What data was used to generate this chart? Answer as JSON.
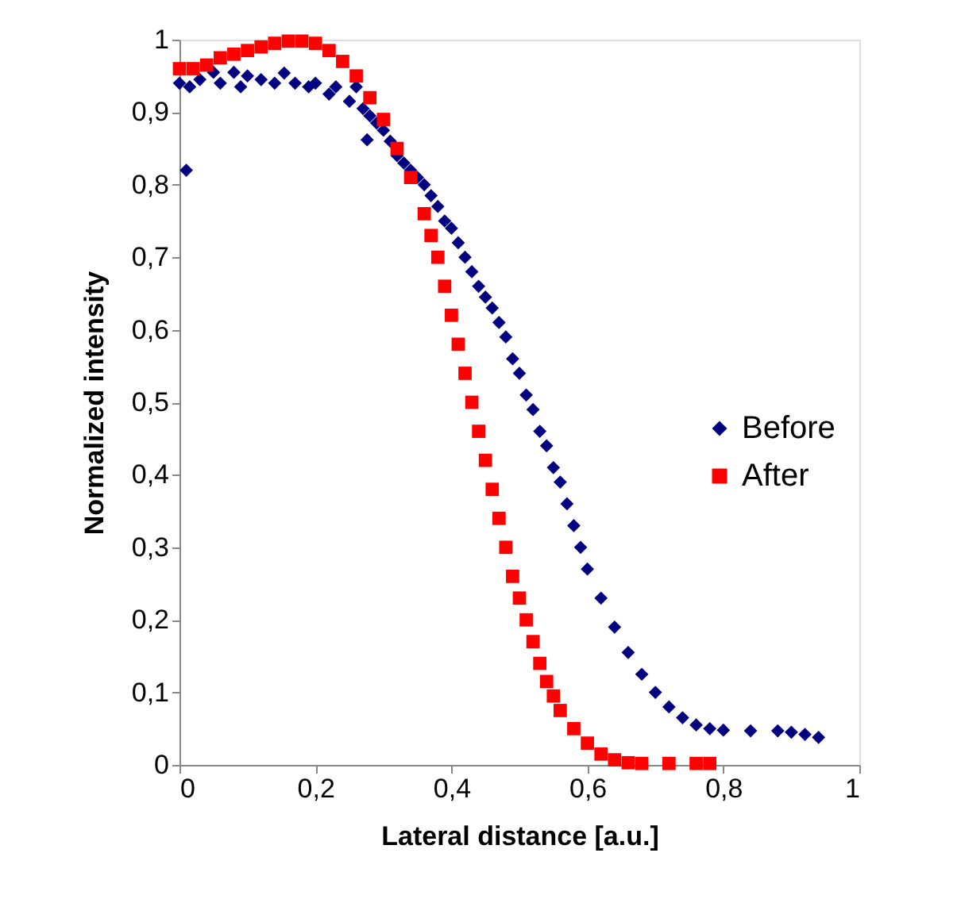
{
  "chart_data": {
    "type": "scatter",
    "xlabel": "Lateral distance [a.u.]",
    "ylabel": "Normalized intensity",
    "xlim": [
      0,
      1
    ],
    "ylim": [
      0,
      1
    ],
    "xticks": [
      0,
      {
        "value": 0.2,
        "label": "0,2"
      },
      {
        "value": 0.4,
        "label": "0,4"
      },
      {
        "value": 0.6,
        "label": "0,6"
      },
      {
        "value": 0.8,
        "label": "0,8"
      },
      1
    ],
    "yticks": [
      0,
      {
        "value": 0.1,
        "label": "0,1"
      },
      {
        "value": 0.2,
        "label": "0,2"
      },
      {
        "value": 0.3,
        "label": "0,3"
      },
      {
        "value": 0.4,
        "label": "0,4"
      },
      {
        "value": 0.5,
        "label": "0,5"
      },
      {
        "value": 0.6,
        "label": "0,6"
      },
      {
        "value": 0.7,
        "label": "0,7"
      },
      {
        "value": 0.8,
        "label": "0,8"
      },
      {
        "value": 0.9,
        "label": "0,9"
      },
      1
    ],
    "grid": false,
    "legend": "right",
    "series": [
      {
        "name": "Before",
        "color": "#000080",
        "marker": "diamond",
        "x": [
          0.0,
          0.01,
          0.015,
          0.03,
          0.05,
          0.06,
          0.08,
          0.09,
          0.1,
          0.12,
          0.14,
          0.154,
          0.17,
          0.19,
          0.2,
          0.22,
          0.23,
          0.25,
          0.26,
          0.27,
          0.276,
          0.28,
          0.29,
          0.3,
          0.31,
          0.32,
          0.33,
          0.34,
          0.35,
          0.36,
          0.37,
          0.38,
          0.39,
          0.4,
          0.41,
          0.42,
          0.43,
          0.44,
          0.45,
          0.46,
          0.47,
          0.48,
          0.49,
          0.5,
          0.51,
          0.52,
          0.53,
          0.54,
          0.55,
          0.56,
          0.57,
          0.58,
          0.59,
          0.6,
          0.62,
          0.64,
          0.66,
          0.68,
          0.7,
          0.72,
          0.74,
          0.76,
          0.78,
          0.8,
          0.84,
          0.88,
          0.9,
          0.92,
          0.94
        ],
        "values": [
          0.94,
          0.82,
          0.935,
          0.945,
          0.955,
          0.94,
          0.955,
          0.935,
          0.95,
          0.945,
          0.94,
          0.954,
          0.94,
          0.935,
          0.94,
          0.925,
          0.935,
          0.915,
          0.935,
          0.905,
          0.862,
          0.895,
          0.885,
          0.875,
          0.86,
          0.84,
          0.83,
          0.82,
          0.81,
          0.8,
          0.785,
          0.77,
          0.75,
          0.74,
          0.72,
          0.7,
          0.68,
          0.66,
          0.645,
          0.63,
          0.61,
          0.59,
          0.56,
          0.54,
          0.51,
          0.49,
          0.46,
          0.44,
          0.41,
          0.39,
          0.36,
          0.33,
          0.3,
          0.27,
          0.23,
          0.19,
          0.155,
          0.125,
          0.1,
          0.08,
          0.065,
          0.055,
          0.05,
          0.048,
          0.047,
          0.047,
          0.045,
          0.042,
          0.038
        ]
      },
      {
        "name": "After",
        "color": "#ff0000",
        "marker": "square",
        "x": [
          0.0,
          0.02,
          0.04,
          0.06,
          0.08,
          0.1,
          0.12,
          0.14,
          0.16,
          0.18,
          0.2,
          0.22,
          0.24,
          0.26,
          0.28,
          0.3,
          0.32,
          0.34,
          0.36,
          0.37,
          0.38,
          0.39,
          0.4,
          0.41,
          0.42,
          0.43,
          0.44,
          0.45,
          0.46,
          0.47,
          0.48,
          0.49,
          0.5,
          0.51,
          0.52,
          0.53,
          0.54,
          0.55,
          0.56,
          0.58,
          0.6,
          0.62,
          0.64,
          0.66,
          0.68,
          0.72,
          0.76,
          0.78
        ],
        "values": [
          0.96,
          0.96,
          0.965,
          0.975,
          0.98,
          0.985,
          0.99,
          0.995,
          0.998,
          0.998,
          0.995,
          0.985,
          0.97,
          0.95,
          0.92,
          0.89,
          0.85,
          0.81,
          0.76,
          0.73,
          0.7,
          0.66,
          0.62,
          0.58,
          0.54,
          0.5,
          0.46,
          0.42,
          0.38,
          0.34,
          0.3,
          0.26,
          0.23,
          0.2,
          0.17,
          0.14,
          0.115,
          0.095,
          0.075,
          0.05,
          0.03,
          0.015,
          0.007,
          0.003,
          0.002,
          0.002,
          0.002,
          0.002
        ]
      }
    ]
  }
}
